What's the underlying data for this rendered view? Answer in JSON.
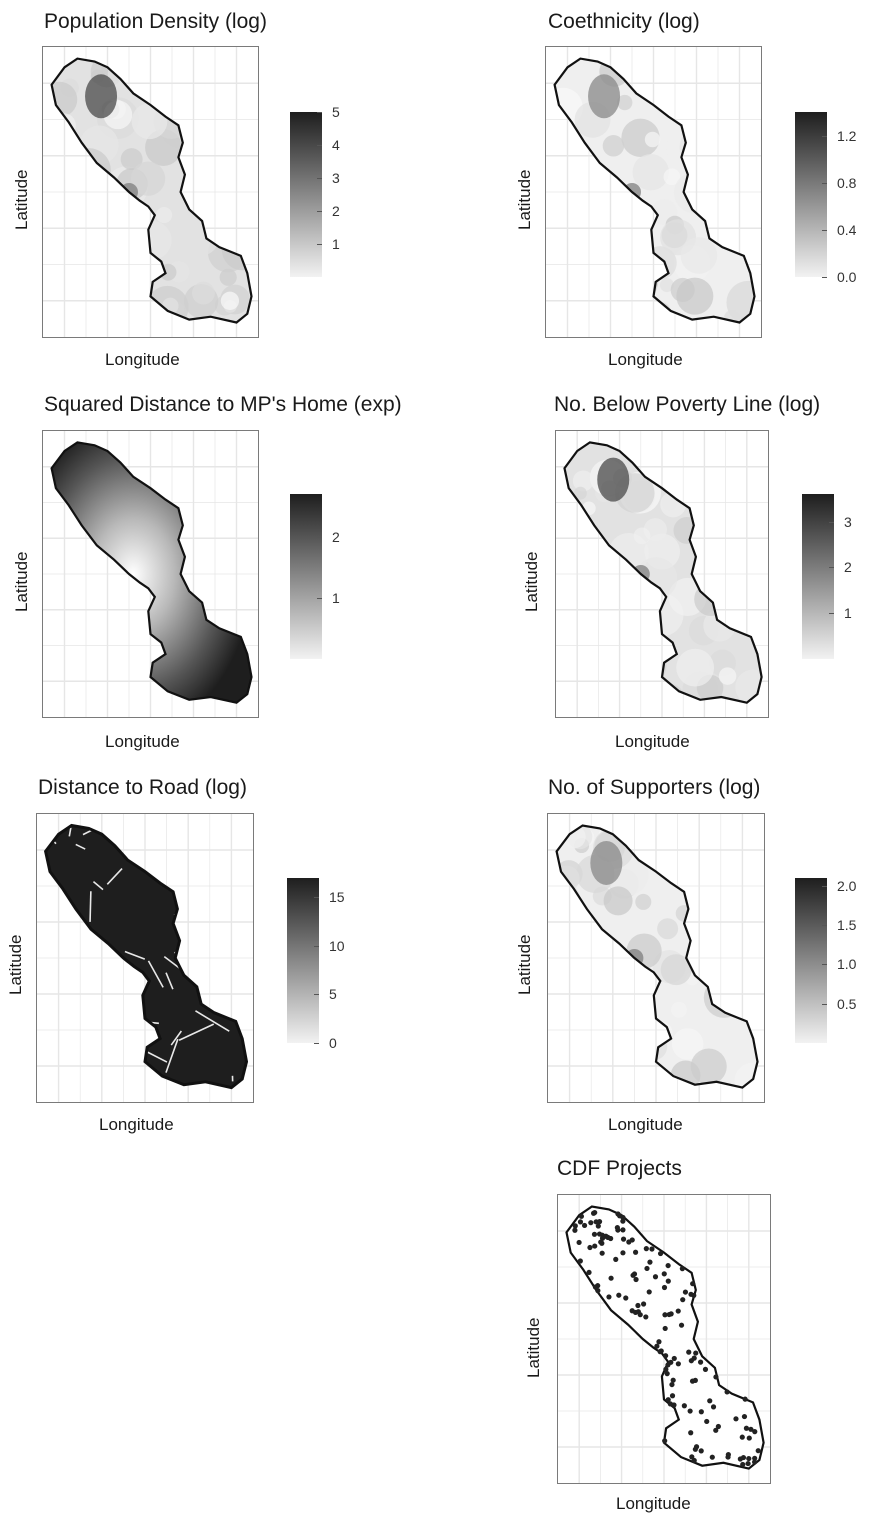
{
  "panels": [
    {
      "id": "popdens",
      "title": "Population Density (log)",
      "xlabel": "Longitude",
      "ylabel": "Latitude",
      "style": "light-gray",
      "legend": {
        "ticks": [
          "5",
          "4",
          "3",
          "2",
          "1"
        ],
        "min": 0,
        "max": 5
      }
    },
    {
      "id": "coeth",
      "title": "Coethnicity (log)",
      "xlabel": "Longitude",
      "ylabel": "Latitude",
      "style": "lighter-gray",
      "legend": {
        "ticks": [
          "1.2",
          "0.8",
          "0.4",
          "0.0"
        ],
        "min": 0,
        "max": 1.4
      }
    },
    {
      "id": "sqdist",
      "title": "Squared Distance to MP's Home (exp)",
      "xlabel": "Longitude",
      "ylabel": "Latitude",
      "style": "radial",
      "legend": {
        "ticks": [
          "2",
          "1"
        ],
        "min": 0,
        "max": 2.7
      }
    },
    {
      "id": "poverty",
      "title": "No. Below Poverty Line (log)",
      "xlabel": "Longitude",
      "ylabel": "Latitude",
      "style": "light-gray",
      "legend": {
        "ticks": [
          "3",
          "2",
          "1"
        ],
        "min": 0,
        "max": 3.6
      }
    },
    {
      "id": "road",
      "title": "Distance to Road (log)",
      "xlabel": "Longitude",
      "ylabel": "Latitude",
      "style": "dark-roads",
      "legend": {
        "ticks": [
          "15",
          "10",
          "5",
          "0"
        ],
        "min": 0,
        "max": 17
      }
    },
    {
      "id": "supporters",
      "title": "No. of Supporters (log)",
      "xlabel": "Longitude",
      "ylabel": "Latitude",
      "style": "lighter-gray",
      "legend": {
        "ticks": [
          "2.0",
          "1.5",
          "1.0",
          "0.5"
        ],
        "min": 0,
        "max": 2.1
      }
    },
    {
      "id": "cdf",
      "title": "CDF Projects",
      "xlabel": "Longitude",
      "ylabel": "Latitude",
      "style": "points",
      "legend": null
    }
  ],
  "colors": {
    "dark": "#1e1e1e",
    "light": "#f4f4f4",
    "outline": "#111111",
    "grid": "#e6e6e6"
  }
}
